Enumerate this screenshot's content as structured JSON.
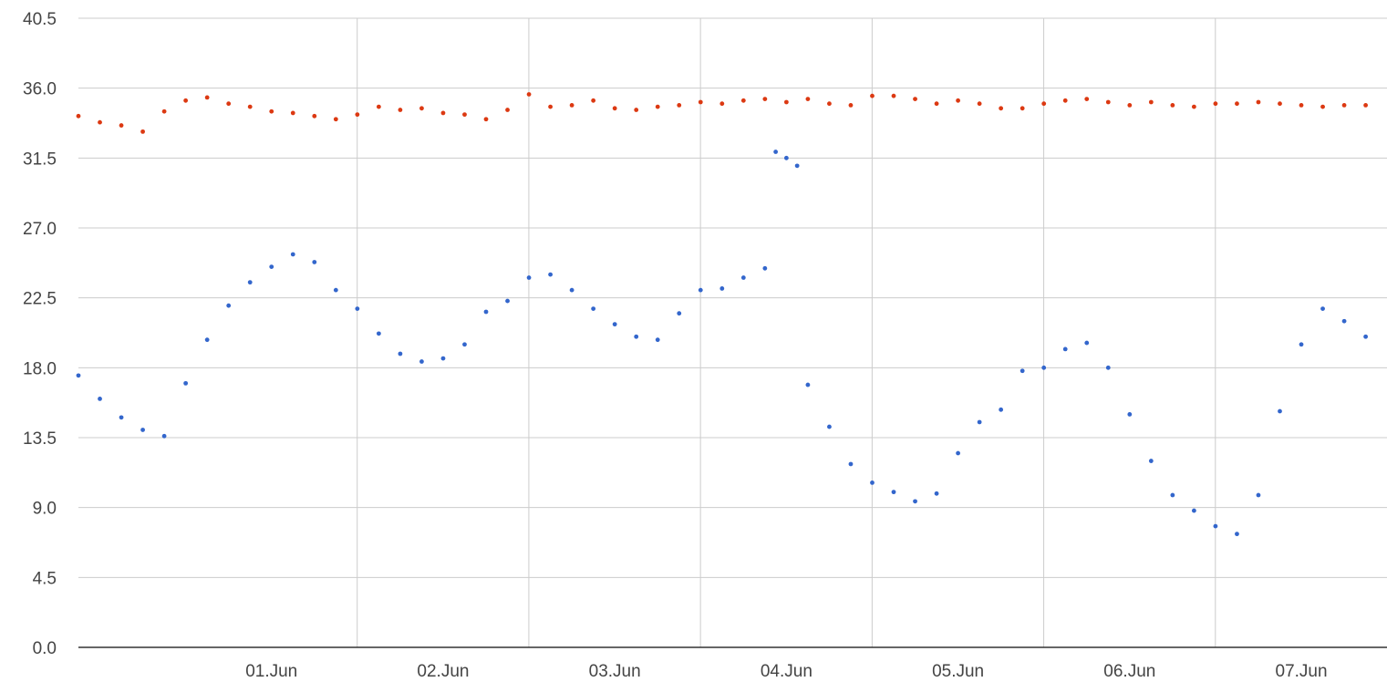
{
  "chart_data": {
    "type": "scatter",
    "title": "",
    "xlabel": "",
    "ylabel": "",
    "x_axis": {
      "type": "date",
      "start": "2024-05-31T09:00",
      "end": "2024-06-07T23:59",
      "tick_labels": [
        "01.Jun",
        "02.Jun",
        "03.Jun",
        "04.Jun",
        "05.Jun",
        "06.Jun",
        "07.Jun"
      ],
      "gridlines_at_midday": true
    },
    "y_axis": {
      "ylim": [
        0,
        40.5
      ],
      "ticks": [
        0.0,
        4.5,
        9.0,
        13.5,
        18.0,
        22.5,
        27.0,
        31.5,
        36.0,
        40.5
      ],
      "tick_labels": [
        "0.0",
        "4.5",
        "9.0",
        "13.5",
        "18.0",
        "22.5",
        "27.0",
        "31.5",
        "36.0",
        "40.5"
      ]
    },
    "grid": true,
    "legend": "none",
    "colors": {
      "series_top": "#dc3912",
      "series_bottom": "#3366cc",
      "grid": "#cccccc",
      "axis": "#333333",
      "labels": "#444444"
    },
    "series": [
      {
        "color": "#dc3912",
        "points": [
          [
            "2024-05-31T09:00",
            34.2
          ],
          [
            "2024-05-31T12:00",
            33.8
          ],
          [
            "2024-05-31T15:00",
            33.6
          ],
          [
            "2024-05-31T18:00",
            33.2
          ],
          [
            "2024-05-31T21:00",
            34.5
          ],
          [
            "2024-06-01T00:00",
            35.2
          ],
          [
            "2024-06-01T03:00",
            35.4
          ],
          [
            "2024-06-01T06:00",
            35.0
          ],
          [
            "2024-06-01T09:00",
            34.8
          ],
          [
            "2024-06-01T12:00",
            34.5
          ],
          [
            "2024-06-01T15:00",
            34.4
          ],
          [
            "2024-06-01T18:00",
            34.2
          ],
          [
            "2024-06-01T21:00",
            34.0
          ],
          [
            "2024-06-02T00:00",
            34.3
          ],
          [
            "2024-06-02T03:00",
            34.8
          ],
          [
            "2024-06-02T06:00",
            34.6
          ],
          [
            "2024-06-02T09:00",
            34.7
          ],
          [
            "2024-06-02T12:00",
            34.4
          ],
          [
            "2024-06-02T15:00",
            34.3
          ],
          [
            "2024-06-02T18:00",
            34.0
          ],
          [
            "2024-06-02T21:00",
            34.6
          ],
          [
            "2024-06-03T00:00",
            35.6
          ],
          [
            "2024-06-03T03:00",
            34.8
          ],
          [
            "2024-06-03T06:00",
            34.9
          ],
          [
            "2024-06-03T09:00",
            35.2
          ],
          [
            "2024-06-03T12:00",
            34.7
          ],
          [
            "2024-06-03T15:00",
            34.6
          ],
          [
            "2024-06-03T18:00",
            34.8
          ],
          [
            "2024-06-03T21:00",
            34.9
          ],
          [
            "2024-06-04T00:00",
            35.1
          ],
          [
            "2024-06-04T03:00",
            35.0
          ],
          [
            "2024-06-04T06:00",
            35.2
          ],
          [
            "2024-06-04T09:00",
            35.3
          ],
          [
            "2024-06-04T12:00",
            35.1
          ],
          [
            "2024-06-04T15:00",
            35.3
          ],
          [
            "2024-06-04T18:00",
            35.0
          ],
          [
            "2024-06-04T21:00",
            34.9
          ],
          [
            "2024-06-05T00:00",
            35.5
          ],
          [
            "2024-06-05T03:00",
            35.5
          ],
          [
            "2024-06-05T06:00",
            35.3
          ],
          [
            "2024-06-05T09:00",
            35.0
          ],
          [
            "2024-06-05T12:00",
            35.2
          ],
          [
            "2024-06-05T15:00",
            35.0
          ],
          [
            "2024-06-05T18:00",
            34.7
          ],
          [
            "2024-06-05T21:00",
            34.7
          ],
          [
            "2024-06-06T00:00",
            35.0
          ],
          [
            "2024-06-06T03:00",
            35.2
          ],
          [
            "2024-06-06T06:00",
            35.3
          ],
          [
            "2024-06-06T09:00",
            35.1
          ],
          [
            "2024-06-06T12:00",
            34.9
          ],
          [
            "2024-06-06T15:00",
            35.1
          ],
          [
            "2024-06-06T18:00",
            34.9
          ],
          [
            "2024-06-06T21:00",
            34.8
          ],
          [
            "2024-06-07T00:00",
            35.0
          ],
          [
            "2024-06-07T03:00",
            35.0
          ],
          [
            "2024-06-07T06:00",
            35.1
          ],
          [
            "2024-06-07T09:00",
            35.0
          ],
          [
            "2024-06-07T12:00",
            34.9
          ],
          [
            "2024-06-07T15:00",
            34.8
          ],
          [
            "2024-06-07T18:00",
            34.9
          ],
          [
            "2024-06-07T21:00",
            34.9
          ]
        ]
      },
      {
        "color": "#3366cc",
        "points": [
          [
            "2024-05-31T09:00",
            17.5
          ],
          [
            "2024-05-31T12:00",
            16.0
          ],
          [
            "2024-05-31T15:00",
            14.8
          ],
          [
            "2024-05-31T18:00",
            14.0
          ],
          [
            "2024-05-31T21:00",
            13.6
          ],
          [
            "2024-06-01T00:00",
            17.0
          ],
          [
            "2024-06-01T03:00",
            19.8
          ],
          [
            "2024-06-01T06:00",
            22.0
          ],
          [
            "2024-06-01T09:00",
            23.5
          ],
          [
            "2024-06-01T12:00",
            24.5
          ],
          [
            "2024-06-01T15:00",
            25.3
          ],
          [
            "2024-06-01T18:00",
            24.8
          ],
          [
            "2024-06-01T21:00",
            23.0
          ],
          [
            "2024-06-02T00:00",
            21.8
          ],
          [
            "2024-06-02T03:00",
            20.2
          ],
          [
            "2024-06-02T06:00",
            18.9
          ],
          [
            "2024-06-02T09:00",
            18.4
          ],
          [
            "2024-06-02T12:00",
            18.6
          ],
          [
            "2024-06-02T15:00",
            19.5
          ],
          [
            "2024-06-02T18:00",
            21.6
          ],
          [
            "2024-06-02T21:00",
            22.3
          ],
          [
            "2024-06-03T00:00",
            23.8
          ],
          [
            "2024-06-03T03:00",
            24.0
          ],
          [
            "2024-06-03T06:00",
            23.0
          ],
          [
            "2024-06-03T09:00",
            21.8
          ],
          [
            "2024-06-03T12:00",
            20.8
          ],
          [
            "2024-06-03T15:00",
            20.0
          ],
          [
            "2024-06-03T18:00",
            19.8
          ],
          [
            "2024-06-03T21:00",
            21.5
          ],
          [
            "2024-06-04T00:00",
            23.0
          ],
          [
            "2024-06-04T03:00",
            23.1
          ],
          [
            "2024-06-04T06:00",
            23.8
          ],
          [
            "2024-06-04T09:00",
            24.4
          ],
          [
            "2024-06-04T10:30",
            31.9
          ],
          [
            "2024-06-04T12:00",
            31.5
          ],
          [
            "2024-06-04T13:30",
            31.0
          ],
          [
            "2024-06-04T15:00",
            16.9
          ],
          [
            "2024-06-04T18:00",
            14.2
          ],
          [
            "2024-06-04T21:00",
            11.8
          ],
          [
            "2024-06-05T00:00",
            10.6
          ],
          [
            "2024-06-05T03:00",
            10.0
          ],
          [
            "2024-06-05T06:00",
            9.4
          ],
          [
            "2024-06-05T09:00",
            9.9
          ],
          [
            "2024-06-05T12:00",
            12.5
          ],
          [
            "2024-06-05T15:00",
            14.5
          ],
          [
            "2024-06-05T18:00",
            15.3
          ],
          [
            "2024-06-05T21:00",
            17.8
          ],
          [
            "2024-06-06T00:00",
            18.0
          ],
          [
            "2024-06-06T03:00",
            19.2
          ],
          [
            "2024-06-06T06:00",
            19.6
          ],
          [
            "2024-06-06T09:00",
            18.0
          ],
          [
            "2024-06-06T12:00",
            15.0
          ],
          [
            "2024-06-06T15:00",
            12.0
          ],
          [
            "2024-06-06T18:00",
            9.8
          ],
          [
            "2024-06-06T21:00",
            8.8
          ],
          [
            "2024-06-07T00:00",
            7.8
          ],
          [
            "2024-06-07T03:00",
            7.3
          ],
          [
            "2024-06-07T06:00",
            9.8
          ],
          [
            "2024-06-07T09:00",
            15.2
          ],
          [
            "2024-06-07T12:00",
            19.5
          ],
          [
            "2024-06-07T15:00",
            21.8
          ],
          [
            "2024-06-07T18:00",
            21.0
          ],
          [
            "2024-06-07T21:00",
            20.0
          ]
        ]
      }
    ]
  }
}
